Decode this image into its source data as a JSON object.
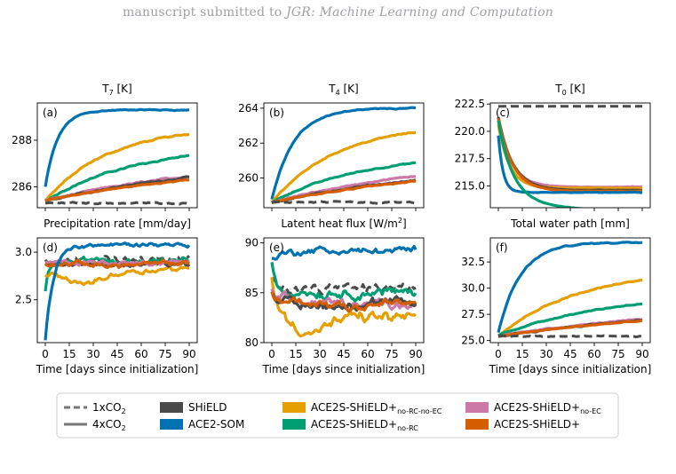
{
  "header": {
    "prefix": "manuscript submitted to ",
    "journal": "JGR: Machine Learning and Computation"
  },
  "chart_data": {
    "type": "line",
    "x_label": "Time [days since initialization]",
    "x_ticks": [
      0,
      15,
      30,
      45,
      60,
      75,
      90
    ],
    "styles": {
      "1xCO2": "dashed",
      "4xCO2": "solid"
    },
    "colors": {
      "SHiELD": "#4a4a4a",
      "ACE2-SOM": "#0072b2",
      "no-RC-no-EC": "#e69f00",
      "no-RC": "#009e73",
      "no-EC": "#cc79a7",
      "ACE2S-SHiELD+": "#d55e00"
    },
    "legend": {
      "one_x": {
        "base": "1xCO",
        "sub": "2"
      },
      "four_x": {
        "base": "4xCO",
        "sub": "2"
      },
      "shield": "SHiELD",
      "ace2som": "ACE2-SOM",
      "nrcnec": {
        "base": "ACE2S-SHiELD+",
        "sub": "no-RC-no-EC"
      },
      "nrc": {
        "base": "ACE2S-SHiELD+",
        "sub": "no-RC"
      },
      "nec": {
        "base": "ACE2S-SHiELD+",
        "sub": "no-EC"
      },
      "full": "ACE2S-SHiELD+"
    },
    "panels": [
      {
        "letter": "(a)",
        "title": {
          "base": "T",
          "sub": "7",
          "rest": " [K]"
        },
        "ylim": [
          285.1,
          289.6
        ],
        "yticks": [
          286,
          288
        ],
        "series": [
          {
            "key": "ACE2-SOM",
            "style": "solid",
            "y0": 286.0,
            "yinf": 289.3,
            "tau": 8,
            "noise": 0.02
          },
          {
            "key": "no-RC-no-EC",
            "style": "solid",
            "y0": 285.4,
            "yinf": 288.6,
            "tau": 40,
            "noise": 0.03
          },
          {
            "key": "no-RC",
            "style": "solid",
            "y0": 285.4,
            "yinf": 287.9,
            "tau": 60,
            "noise": 0.03
          },
          {
            "key": "no-EC",
            "style": "solid",
            "y0": 285.4,
            "yinf": 287.4,
            "tau": 120,
            "noise": 0.03
          },
          {
            "key": "SHiELD",
            "style": "solid",
            "y0": 285.4,
            "yinf": 287.3,
            "tau": 120,
            "noise": 0.03
          },
          {
            "key": "ACE2S-SHiELD+",
            "style": "solid",
            "y0": 285.4,
            "yinf": 287.1,
            "tau": 120,
            "noise": 0.02
          },
          {
            "key": "SHiELD",
            "style": "dashed",
            "y0": 285.3,
            "yinf": 285.3,
            "tau": 10,
            "noise": 0.03
          }
        ]
      },
      {
        "letter": "(b)",
        "title": {
          "base": "T",
          "sub": "4",
          "rest": " [K]"
        },
        "ylim": [
          258.3,
          264.3
        ],
        "yticks": [
          260,
          262,
          264
        ],
        "series": [
          {
            "key": "ACE2-SOM",
            "style": "solid",
            "y0": 258.8,
            "yinf": 264.0,
            "tau": 14,
            "noise": 0.03
          },
          {
            "key": "no-RC-no-EC",
            "style": "solid",
            "y0": 258.6,
            "yinf": 263.1,
            "tau": 40,
            "noise": 0.03
          },
          {
            "key": "no-RC",
            "style": "solid",
            "y0": 258.6,
            "yinf": 261.4,
            "tau": 55,
            "noise": 0.03
          },
          {
            "key": "no-EC",
            "style": "solid",
            "y0": 258.6,
            "yinf": 261.3,
            "tau": 110,
            "noise": 0.03
          },
          {
            "key": "SHiELD",
            "style": "solid",
            "y0": 258.6,
            "yinf": 261.0,
            "tau": 120,
            "noise": 0.03
          },
          {
            "key": "ACE2S-SHiELD+",
            "style": "solid",
            "y0": 258.6,
            "yinf": 260.9,
            "tau": 120,
            "noise": 0.03
          },
          {
            "key": "SHiELD",
            "style": "dashed",
            "y0": 258.6,
            "yinf": 258.6,
            "tau": 10,
            "noise": 0.04
          }
        ]
      },
      {
        "letter": "(c)",
        "title": {
          "base": "T",
          "sub": "0",
          "rest": " [K]"
        },
        "ylim": [
          213.0,
          222.6
        ],
        "yticks": [
          215.0,
          217.5,
          220.0,
          222.5
        ],
        "series": [
          {
            "key": "SHiELD",
            "style": "dashed",
            "y0": 222.3,
            "yinf": 222.3,
            "tau": 10,
            "noise": 0.0
          },
          {
            "key": "no-EC",
            "style": "solid",
            "y0": 221.2,
            "yinf": 214.9,
            "tau": 8,
            "noise": 0.02
          },
          {
            "key": "no-RC-no-EC",
            "style": "solid",
            "y0": 220.6,
            "yinf": 214.8,
            "tau": 7,
            "noise": 0.02
          },
          {
            "key": "SHiELD",
            "style": "solid",
            "y0": 221.3,
            "yinf": 214.6,
            "tau": 9,
            "noise": 0.02
          },
          {
            "key": "ACE2S-SHiELD+",
            "style": "solid",
            "y0": 221.2,
            "yinf": 214.5,
            "tau": 9,
            "noise": 0.02
          },
          {
            "key": "ACE2-SOM",
            "style": "solid",
            "y0": 219.6,
            "yinf": 214.4,
            "tau": 3,
            "noise": 0.02
          },
          {
            "key": "no-RC",
            "style": "solid",
            "y0": 221.0,
            "yinf": 213.5,
            "tau": 9,
            "drift": -0.012,
            "noise": 0.02
          }
        ]
      },
      {
        "letter": "(d)",
        "title": {
          "base": "Precipitation rate [mm/day]",
          "sub": "",
          "rest": ""
        },
        "ylim": [
          2.05,
          3.15
        ],
        "yticks": [
          2.5,
          3.0
        ],
        "series": [
          {
            "key": "SHiELD",
            "style": "dashed",
            "y0": 2.93,
            "yinf": 2.92,
            "tau": 5,
            "noise": 0.03
          },
          {
            "key": "no-RC",
            "style": "solid",
            "y0": 2.58,
            "yinf": 2.91,
            "tau": 2,
            "noise": 0.025
          },
          {
            "key": "no-RC-no-EC",
            "style": "solid",
            "y0": 2.78,
            "yinf": 2.84,
            "tau": 60,
            "dip": -0.12,
            "noise": 0.025
          },
          {
            "key": "SHiELD",
            "style": "solid",
            "y0": 2.9,
            "yinf": 2.87,
            "tau": 20,
            "noise": 0.025
          },
          {
            "key": "no-EC",
            "style": "solid",
            "y0": 2.88,
            "yinf": 2.89,
            "tau": 20,
            "noise": 0.025
          },
          {
            "key": "ACE2S-SHiELD+",
            "style": "solid",
            "y0": 2.88,
            "yinf": 2.87,
            "tau": 20,
            "noise": 0.025
          },
          {
            "key": "ACE2-SOM",
            "style": "solid",
            "y0": 2.08,
            "yinf": 3.08,
            "tau": 5,
            "noise": 0.02
          }
        ]
      },
      {
        "letter": "(e)",
        "title": {
          "base": "Latent heat flux [W/m",
          "sup": "2",
          "rest": "]"
        },
        "ylim": [
          80,
          90.5
        ],
        "yticks": [
          80,
          85,
          90
        ],
        "series": [
          {
            "key": "ACE2-SOM",
            "style": "solid",
            "y0": 88.5,
            "yinf": 89.2,
            "tau": 10,
            "noise": 0.3
          },
          {
            "key": "SHiELD",
            "style": "dashed",
            "y0": 86.0,
            "yinf": 85.5,
            "tau": 10,
            "noise": 0.45
          },
          {
            "key": "no-RC",
            "style": "solid",
            "y0": 88.0,
            "yinf": 85.0,
            "tau": 3,
            "noise": 0.45
          },
          {
            "key": "no-RC-no-EC",
            "style": "solid",
            "y0": 86.5,
            "yinf": 82.5,
            "tau": 4,
            "dip": -1.2,
            "noise": 0.5
          },
          {
            "key": "no-EC",
            "style": "solid",
            "y0": 85.0,
            "yinf": 84.0,
            "tau": 5,
            "noise": 0.45
          },
          {
            "key": "SHiELD",
            "style": "solid",
            "y0": 85.0,
            "yinf": 83.8,
            "tau": 5,
            "noise": 0.45
          },
          {
            "key": "ACE2S-SHiELD+",
            "style": "solid",
            "y0": 85.0,
            "yinf": 83.9,
            "tau": 5,
            "noise": 0.45
          }
        ]
      },
      {
        "letter": "(f)",
        "title": {
          "base": "Total water path [mm]",
          "sub": "",
          "rest": ""
        },
        "ylim": [
          24.8,
          34.8
        ],
        "yticks": [
          25.0,
          27.5,
          30.0,
          32.5
        ],
        "series": [
          {
            "key": "ACE2-SOM",
            "style": "solid",
            "y0": 25.8,
            "yinf": 34.4,
            "tau": 14,
            "noise": 0.05
          },
          {
            "key": "no-RC-no-EC",
            "style": "solid",
            "y0": 25.5,
            "yinf": 31.8,
            "tau": 50,
            "noise": 0.05
          },
          {
            "key": "no-RC",
            "style": "solid",
            "y0": 25.5,
            "yinf": 29.7,
            "tau": 70,
            "noise": 0.05
          },
          {
            "key": "no-EC",
            "style": "solid",
            "y0": 25.4,
            "yinf": 28.3,
            "tau": 110,
            "noise": 0.05
          },
          {
            "key": "SHiELD",
            "style": "solid",
            "y0": 25.4,
            "yinf": 28.1,
            "tau": 110,
            "noise": 0.05
          },
          {
            "key": "ACE2S-SHiELD+",
            "style": "solid",
            "y0": 25.4,
            "yinf": 28.0,
            "tau": 110,
            "noise": 0.04
          },
          {
            "key": "SHiELD",
            "style": "dashed",
            "y0": 25.4,
            "yinf": 25.4,
            "tau": 10,
            "noise": 0.05
          }
        ]
      }
    ]
  }
}
